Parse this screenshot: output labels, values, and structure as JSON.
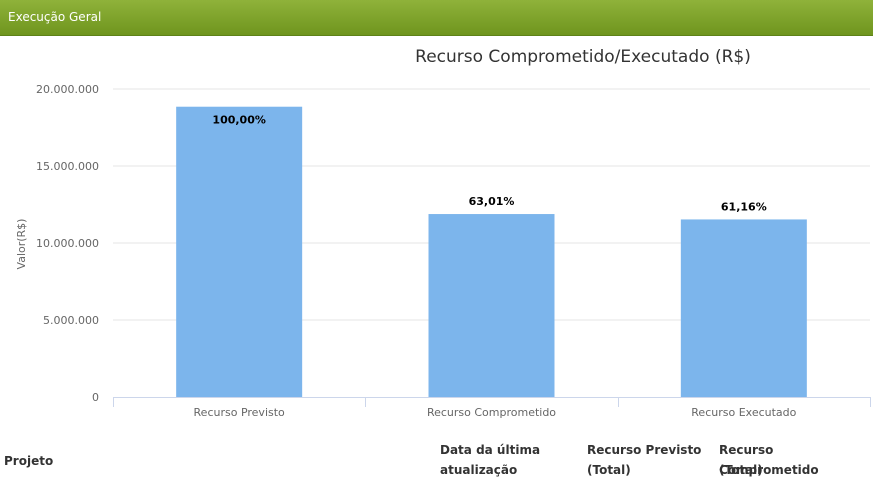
{
  "panel": {
    "title": "Execução Geral"
  },
  "chart_data": {
    "type": "bar",
    "title": "Recurso Comprometido/Executado (R$)",
    "ylabel": "Valor(R$)",
    "xlabel": "",
    "ylim": [
      0,
      20000000
    ],
    "yticks": [
      0,
      5000000,
      10000000,
      15000000,
      20000000
    ],
    "ytick_labels": [
      "0",
      "5.000.000",
      "10.000.000",
      "15.000.000",
      "20.000.000"
    ],
    "categories": [
      "Recurso Previsto",
      "Recurso Comprometido",
      "Recurso Executado"
    ],
    "values": [
      18850000,
      11880000,
      11530000
    ],
    "data_labels": [
      "100,00%",
      "63,01%",
      "61,16%"
    ],
    "bar_color": "#7cb5ec",
    "grid": true,
    "legend": "none"
  },
  "table": {
    "headers": {
      "projeto": "Projeto",
      "data_line1": "Data da última",
      "data_line2": "atualização",
      "previsto_line1": "Recurso Previsto",
      "previsto_line2": "(Total)",
      "comprometido_line1": "Recurso Comprometido",
      "comprometido_line2": "(Total)"
    }
  }
}
